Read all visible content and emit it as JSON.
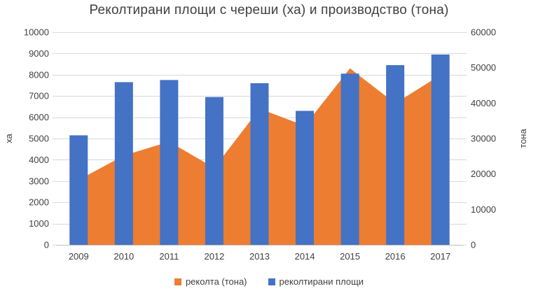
{
  "chart_data": {
    "type": "combo-bar-area",
    "title": "Реколтирани площи с череши (ха) и производство (тона)",
    "categories": [
      "2009",
      "2010",
      "2011",
      "2012",
      "2013",
      "2014",
      "2015",
      "2016",
      "2017"
    ],
    "series": [
      {
        "name": "реколта (тона)",
        "type": "area",
        "axis": "right",
        "color": "#ED7D31",
        "values": [
          18300,
          25200,
          29100,
          21700,
          38400,
          33600,
          49800,
          39900,
          47900
        ]
      },
      {
        "name": "реколтирани площи",
        "type": "bar",
        "axis": "left",
        "color": "#4472C4",
        "values": [
          5150,
          7650,
          7750,
          6950,
          7600,
          6300,
          8050,
          8450,
          8950
        ]
      }
    ],
    "left_axis": {
      "label": "ха",
      "min": 0,
      "max": 10000,
      "step": 1000,
      "ticks": [
        "0",
        "1000",
        "2000",
        "3000",
        "4000",
        "5000",
        "6000",
        "7000",
        "8000",
        "9000",
        "10000"
      ]
    },
    "right_axis": {
      "label": "тона",
      "min": 0,
      "max": 60000,
      "step": 10000,
      "ticks": [
        "0",
        "10000",
        "20000",
        "30000",
        "40000",
        "50000",
        "60000"
      ]
    },
    "legend_position": "bottom",
    "grid": true,
    "colors": {
      "gridline": "#D9D9D9",
      "axis_line": "#BFBFBF",
      "tick_text": "#404040",
      "title_text": "#3F3F3F"
    }
  }
}
